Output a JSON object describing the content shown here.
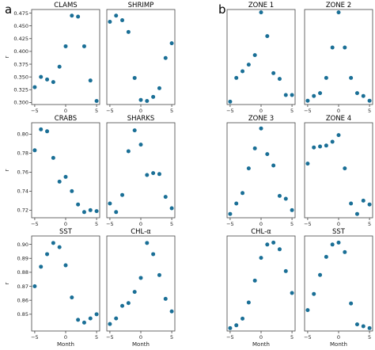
{
  "panel_letters": [
    "a",
    "b"
  ],
  "colors": {
    "point": "#1a6f96",
    "frame": "#444444"
  },
  "chart_data": [
    {
      "id": "clams",
      "type": "scatter",
      "group": "a",
      "title": "CLAMS",
      "ylabel": "r",
      "xlabel": "",
      "xlim": [
        -5.5,
        5.5
      ],
      "ylim": [
        0.296,
        0.482
      ],
      "yticks": [
        0.3,
        0.325,
        0.35,
        0.375,
        0.4,
        0.425,
        0.45,
        0.475
      ],
      "ytick_decimals": 3,
      "xticks": [
        -5,
        0,
        5
      ],
      "x": [
        -5,
        -4,
        -3,
        -2,
        -1,
        0,
        1,
        2,
        3,
        4,
        5
      ],
      "y": [
        0.33,
        0.35,
        0.345,
        0.34,
        0.37,
        0.41,
        0.47,
        0.468,
        0.41,
        0.343,
        0.303
      ]
    },
    {
      "id": "shrimp",
      "type": "scatter",
      "group": "a",
      "title": "SHRIMP",
      "ylabel": "",
      "xlabel": "",
      "xlim": [
        -5.5,
        5.5
      ],
      "ylim": [
        0.296,
        0.482
      ],
      "yticks": [],
      "xticks": [
        -5,
        0,
        5
      ],
      "x": [
        -5,
        -4,
        -3,
        -2,
        -1,
        0,
        1,
        2,
        3,
        4,
        5
      ],
      "y": [
        0.458,
        0.47,
        0.461,
        0.438,
        0.348,
        0.305,
        0.303,
        0.311,
        0.328,
        0.387,
        0.416
      ]
    },
    {
      "id": "zone1",
      "type": "scatter",
      "group": "b",
      "title": "ZONE 1",
      "ylabel": "",
      "xlabel": "",
      "xlim": [
        -5.5,
        5.5
      ],
      "ylim": [
        0,
        1
      ],
      "yticks": [],
      "xticks": [
        -5,
        0,
        5
      ],
      "x": [
        -5,
        -4,
        -3,
        -2,
        -1,
        0,
        1,
        2,
        3,
        4,
        5
      ],
      "y": [
        0.03,
        0.28,
        0.35,
        0.42,
        0.52,
        0.97,
        0.72,
        0.33,
        0.27,
        0.1,
        0.1
      ]
    },
    {
      "id": "zone2",
      "type": "scatter",
      "group": "b",
      "title": "ZONE 2",
      "ylabel": "",
      "xlabel": "",
      "xlim": [
        -5.5,
        5.5
      ],
      "ylim": [
        0,
        1
      ],
      "yticks": [],
      "xticks": [
        -5,
        0,
        5
      ],
      "x": [
        -5,
        -4,
        -3,
        -2,
        -1,
        0,
        1,
        2,
        3,
        4,
        5
      ],
      "y": [
        0.04,
        0.09,
        0.12,
        0.28,
        0.6,
        0.97,
        0.6,
        0.28,
        0.12,
        0.09,
        0.04
      ]
    },
    {
      "id": "crabs",
      "type": "scatter",
      "group": "a",
      "title": "CRABS",
      "ylabel": "r",
      "xlabel": "",
      "xlim": [
        -5.5,
        5.5
      ],
      "ylim": [
        0.712,
        0.812
      ],
      "yticks": [
        0.72,
        0.74,
        0.76,
        0.78,
        0.8
      ],
      "ytick_decimals": 2,
      "xticks": [
        -5,
        0,
        5
      ],
      "x": [
        -5,
        -4,
        -3,
        -2,
        -1,
        0,
        1,
        2,
        3,
        4,
        5
      ],
      "y": [
        0.783,
        0.805,
        0.803,
        0.775,
        0.75,
        0.755,
        0.74,
        0.726,
        0.718,
        0.72,
        0.719
      ]
    },
    {
      "id": "sharks",
      "type": "scatter",
      "group": "a",
      "title": "SHARKS",
      "ylabel": "",
      "xlabel": "",
      "xlim": [
        -5.5,
        5.5
      ],
      "ylim": [
        0.712,
        0.812
      ],
      "yticks": [],
      "xticks": [
        -5,
        0,
        5
      ],
      "x": [
        -5,
        -4,
        -3,
        -2,
        -1,
        0,
        1,
        2,
        3,
        4,
        5
      ],
      "y": [
        0.727,
        0.718,
        0.736,
        0.782,
        0.804,
        0.789,
        0.757,
        0.759,
        0.758,
        0.734,
        0.722
      ]
    },
    {
      "id": "zone3",
      "type": "scatter",
      "group": "b",
      "title": "ZONE 3",
      "ylabel": "",
      "xlabel": "",
      "xlim": [
        -5.5,
        5.5
      ],
      "ylim": [
        0,
        1
      ],
      "yticks": [],
      "xticks": [
        -5,
        0,
        5
      ],
      "x": [
        -5,
        -4,
        -3,
        -2,
        -1,
        0,
        1,
        2,
        3,
        4,
        5
      ],
      "y": [
        0.04,
        0.15,
        0.26,
        0.52,
        0.73,
        0.94,
        0.67,
        0.55,
        0.23,
        0.2,
        0.08
      ]
    },
    {
      "id": "zone4",
      "type": "scatter",
      "group": "b",
      "title": "ZONE 4",
      "ylabel": "",
      "xlabel": "",
      "xlim": [
        -5.5,
        5.5
      ],
      "ylim": [
        0,
        1
      ],
      "yticks": [],
      "xticks": [
        -5,
        0,
        5
      ],
      "x": [
        -5,
        -4,
        -3,
        -2,
        -1,
        0,
        1,
        2,
        3,
        4,
        5
      ],
      "y": [
        0.57,
        0.74,
        0.75,
        0.76,
        0.8,
        0.87,
        0.52,
        0.15,
        0.04,
        0.18,
        0.14
      ]
    },
    {
      "id": "sst_a",
      "type": "scatter",
      "group": "a",
      "title": "SST",
      "ylabel": "r",
      "xlabel": "Month",
      "xlim": [
        -5.5,
        5.5
      ],
      "ylim": [
        0.838,
        0.906
      ],
      "yticks": [
        0.85,
        0.86,
        0.87,
        0.88,
        0.89,
        0.9
      ],
      "ytick_decimals": 2,
      "xticks": [
        -5,
        0,
        5
      ],
      "x": [
        -5,
        -4,
        -3,
        -2,
        -1,
        0,
        1,
        2,
        3,
        4,
        5
      ],
      "y": [
        0.87,
        0.884,
        0.893,
        0.901,
        0.898,
        0.885,
        0.862,
        0.846,
        0.844,
        0.847,
        0.85
      ]
    },
    {
      "id": "chla_a",
      "type": "scatter",
      "group": "a",
      "title": "CHL-α",
      "ylabel": "",
      "xlabel": "Month",
      "xlim": [
        -5.5,
        5.5
      ],
      "ylim": [
        0.838,
        0.906
      ],
      "yticks": [],
      "xticks": [
        -5,
        0,
        5
      ],
      "x": [
        -5,
        -4,
        -3,
        -2,
        -1,
        0,
        1,
        2,
        3,
        4,
        5
      ],
      "y": [
        0.843,
        0.847,
        0.856,
        0.858,
        0.866,
        0.876,
        0.901,
        0.893,
        0.878,
        0.861,
        0.852
      ]
    },
    {
      "id": "chla_b",
      "type": "scatter",
      "group": "b",
      "title": "CHL-α",
      "ylabel": "",
      "xlabel": "Month",
      "xlim": [
        -5.5,
        5.5
      ],
      "ylim": [
        0,
        1
      ],
      "yticks": [],
      "xticks": [
        -5,
        0,
        5
      ],
      "x": [
        -5,
        -4,
        -3,
        -2,
        -1,
        0,
        1,
        2,
        3,
        4,
        5
      ],
      "y": [
        0.03,
        0.06,
        0.13,
        0.3,
        0.53,
        0.77,
        0.91,
        0.93,
        0.86,
        0.63,
        0.4
      ]
    },
    {
      "id": "sst_b",
      "type": "scatter",
      "group": "b",
      "title": "SST",
      "ylabel": "",
      "xlabel": "Month",
      "xlim": [
        -5.5,
        5.5
      ],
      "ylim": [
        0,
        1
      ],
      "yticks": [],
      "xticks": [
        -5,
        0,
        5
      ],
      "x": [
        -5,
        -4,
        -3,
        -2,
        -1,
        0,
        1,
        2,
        3,
        4,
        5
      ],
      "y": [
        0.22,
        0.39,
        0.59,
        0.78,
        0.91,
        0.93,
        0.83,
        0.29,
        0.07,
        0.05,
        0.03
      ]
    }
  ]
}
